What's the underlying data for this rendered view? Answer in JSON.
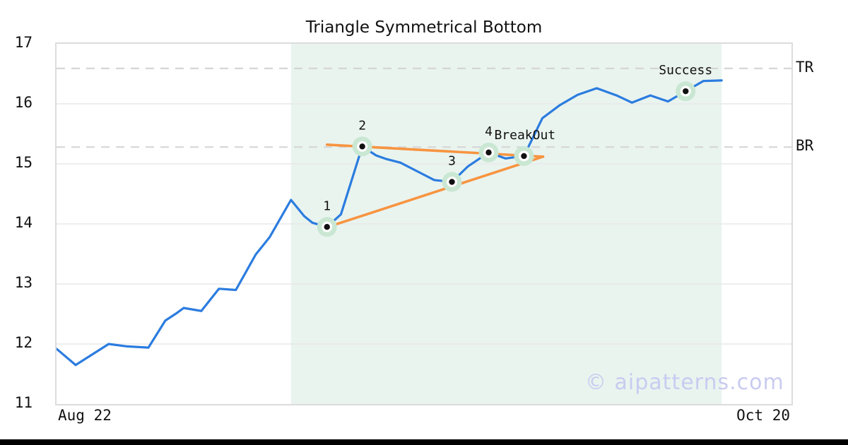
{
  "title": "Triangle Symmetrical Bottom",
  "watermark": "© aipatterns.com",
  "colors": {
    "price_line": "#2b7cdf",
    "trendline": "#f79440",
    "pattern_shade": "#e9f4ef",
    "marker_halo": "#c9e7d2",
    "marker_dot": "#111111",
    "gridline": "#e8e8e8",
    "dashed_level": "#d6d6d6",
    "plot_border": "#dcdcdc",
    "watermark_color": "#c9cbf0",
    "footer_bar": "#000000",
    "text": "#111111"
  },
  "chart_data": {
    "type": "line",
    "title": "Triangle Symmetrical Bottom",
    "xlabel": "",
    "ylabel": "",
    "ylim": [
      11,
      17
    ],
    "grid": "horizontal",
    "x_axis": {
      "start_label": "Aug 22",
      "end_label": "Oct 20"
    },
    "y_axis": {
      "ticks": [
        17,
        16,
        15,
        14,
        13,
        12,
        11
      ],
      "grid_values": [
        16,
        15,
        14,
        13,
        12
      ]
    },
    "series": [
      {
        "name": "price",
        "x_pct": [
          0,
          2.6,
          7.1,
          9.6,
          12.5,
          14.8,
          16.3,
          17.3,
          19.7,
          22.1,
          24.4,
          27.1,
          29.0,
          31.9,
          33.7,
          34.8,
          36.8,
          38.7,
          41.6,
          43.5,
          44.9,
          46.8,
          49.5,
          51.4,
          53.8,
          56.0,
          58.8,
          61.1,
          63.6,
          66.1,
          68.5,
          70.9,
          73.5,
          76.2,
          78.3,
          80.8,
          83.2,
          85.6,
          88.0,
          90.5
        ],
        "values": [
          11.92,
          11.65,
          12.0,
          11.96,
          11.94,
          12.39,
          12.51,
          12.6,
          12.55,
          12.92,
          12.9,
          13.49,
          13.78,
          14.4,
          14.13,
          14.02,
          13.95,
          14.16,
          15.29,
          15.14,
          15.08,
          15.02,
          14.85,
          14.73,
          14.7,
          14.96,
          15.19,
          15.09,
          15.13,
          15.76,
          15.98,
          16.15,
          16.26,
          16.14,
          16.02,
          16.14,
          16.04,
          16.21,
          16.38,
          16.39
        ]
      }
    ],
    "markers": [
      {
        "label": "1",
        "x_pct": 36.8,
        "value": 13.95
      },
      {
        "label": "2",
        "x_pct": 41.6,
        "value": 15.29
      },
      {
        "label": "3",
        "x_pct": 53.8,
        "value": 14.7
      },
      {
        "label": "4",
        "x_pct": 58.8,
        "value": 15.19
      },
      {
        "label": "BreakOut",
        "x_pct": 63.6,
        "value": 15.13,
        "label_dx": -42,
        "label_anchor": "start"
      },
      {
        "label": "Success",
        "x_pct": 85.6,
        "value": 16.21
      }
    ],
    "trendlines": [
      {
        "x1_pct": 36.8,
        "v1": 15.32,
        "x2_pct": 66.2,
        "v2": 15.12
      },
      {
        "x1_pct": 36.7,
        "v1": 13.94,
        "x2_pct": 66.2,
        "v2": 15.12
      }
    ],
    "shaded_region": {
      "x_start_pct": 31.9,
      "x_end_pct": 90.5
    },
    "dashed_levels": [
      {
        "label": "TR",
        "value": 16.59
      },
      {
        "label": "BR",
        "value": 15.28
      }
    ],
    "legend": "none"
  }
}
